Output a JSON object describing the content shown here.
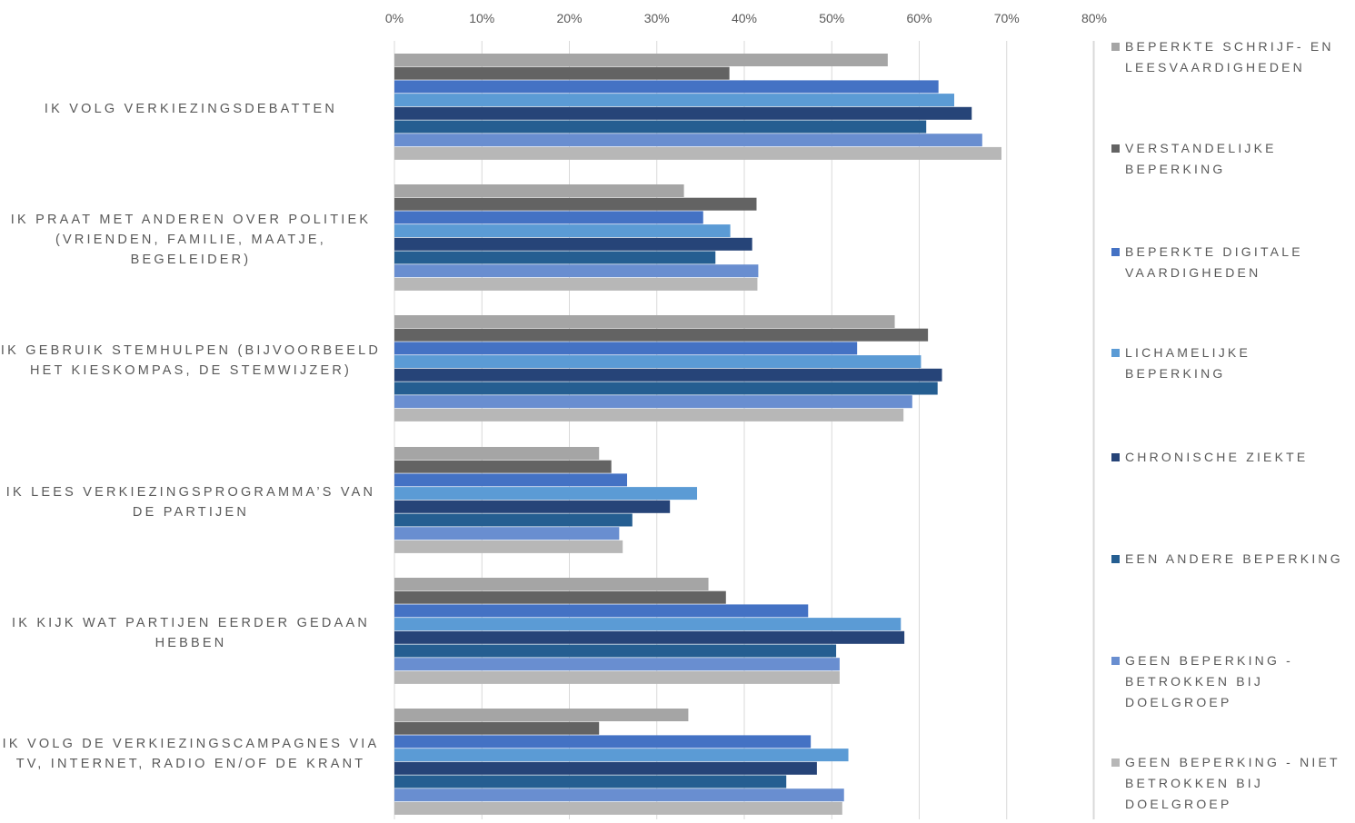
{
  "chart_data": {
    "type": "bar",
    "orientation": "horizontal",
    "categories": [
      "IK VOLG VERKIEZINGSDEBATTEN",
      "IK PRAAT MET ANDEREN OVER POLITIEK (VRIENDEN, FAMILIE, MAATJE, BEGELEIDER)",
      "IK GEBRUIK STEMHULPEN (BIJVOORBEELD HET KIESKOMPAS, DE STEMWIJZER)",
      "IK LEES VERKIEZINGSPROGRAMMA’S VAN DE PARTIJEN",
      "IK KIJK WAT PARTIJEN EERDER GEDAAN HEBBEN",
      "IK VOLG DE VERKIEZINGSCAMPAGNES VIA TV, INTERNET, RADIO EN/OF DE KRANT"
    ],
    "series": [
      {
        "name": "BEPERKTE SCHRIJF- EN LEESVAARDIGHEDEN",
        "color": "#A5A5A5",
        "values": [
          56.4,
          33.1,
          57.2,
          23.4,
          35.9,
          33.6
        ]
      },
      {
        "name": "VERSTANDELIJKE BEPERKING",
        "color": "#636363",
        "values": [
          38.3,
          41.4,
          61.0,
          24.8,
          37.9,
          23.4
        ]
      },
      {
        "name": "BEPERKTE DIGITALE VAARDIGHEDEN",
        "color": "#4472C4",
        "values": [
          62.2,
          35.3,
          52.9,
          26.6,
          47.3,
          47.6
        ]
      },
      {
        "name": "LICHAMELIJKE BEPERKING",
        "color": "#5B9BD5",
        "values": [
          64.0,
          38.4,
          60.2,
          34.6,
          57.9,
          51.9
        ]
      },
      {
        "name": "CHRONISCHE ZIEKTE",
        "color": "#264478",
        "values": [
          66.0,
          40.9,
          62.6,
          31.5,
          58.3,
          48.3
        ]
      },
      {
        "name": "EEN ANDERE BEPERKING",
        "color": "#255E91",
        "values": [
          60.8,
          36.7,
          62.1,
          27.2,
          50.5,
          44.8
        ]
      },
      {
        "name": "GEEN BEPERKING - BETROKKEN BIJ DOELGROEP",
        "color": "#698ED0",
        "values": [
          67.2,
          41.6,
          59.2,
          25.7,
          50.9,
          51.4
        ]
      },
      {
        "name": "GEEN BEPERKING - NIET BETROKKEN BIJ DOELGROEP",
        "color": "#B7B7B7",
        "values": [
          69.4,
          41.5,
          58.2,
          26.1,
          50.9,
          51.2
        ]
      }
    ],
    "x_ticks": [
      "0%",
      "10%",
      "20%",
      "30%",
      "40%",
      "50%",
      "60%",
      "70%",
      "80%"
    ],
    "xlim": [
      0,
      80
    ],
    "grid": true,
    "legend_position": "right"
  }
}
